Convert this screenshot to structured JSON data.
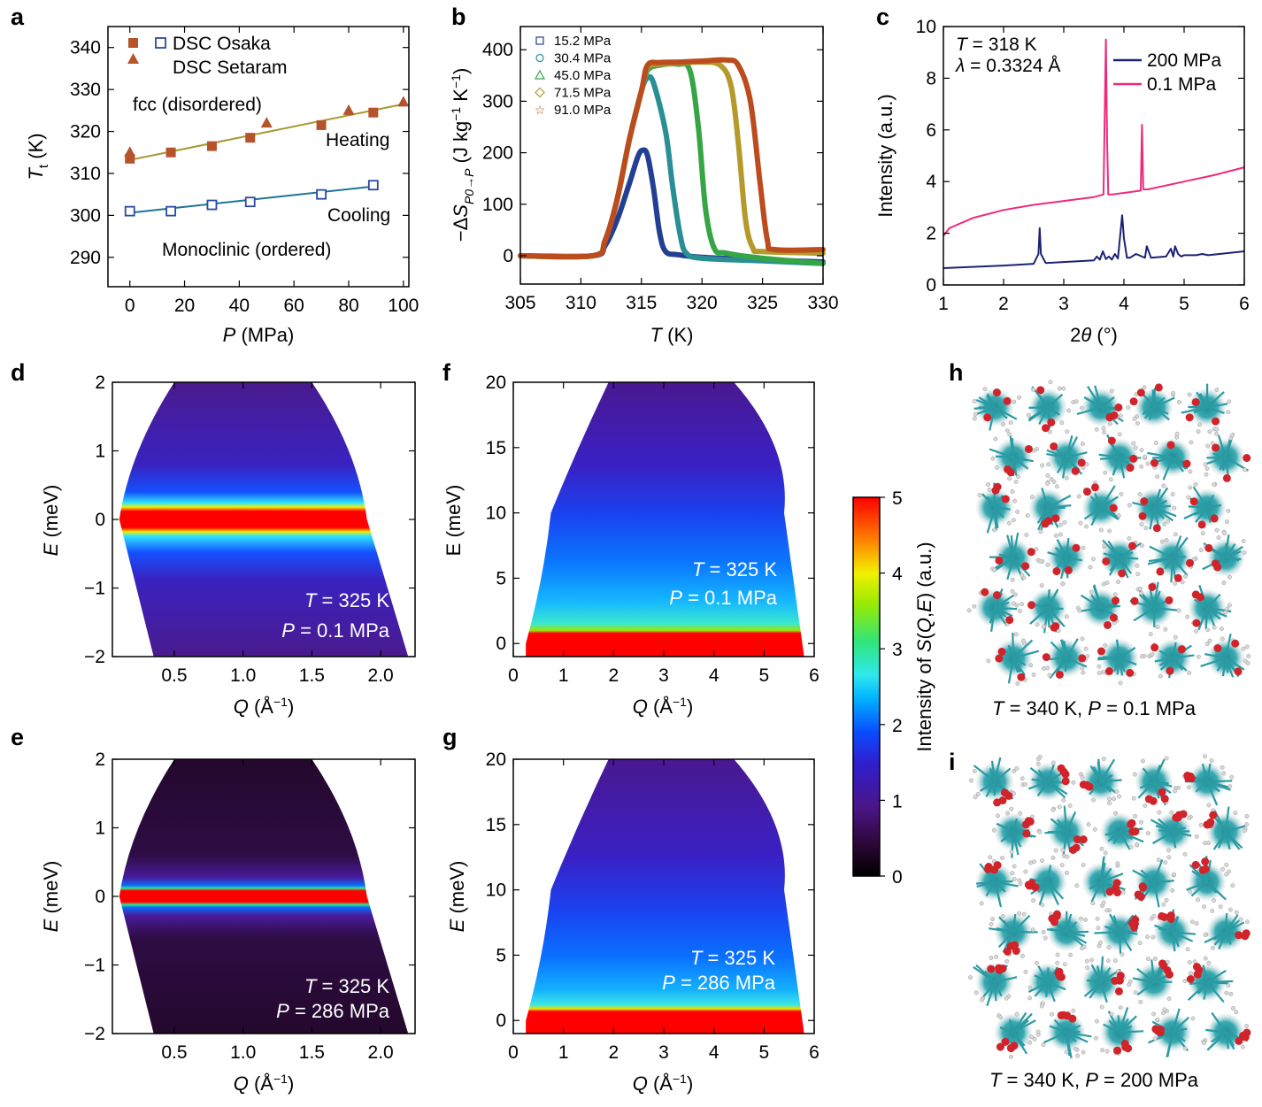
{
  "chart_data": [
    {
      "panel": "a",
      "type": "scatter",
      "xlabel": "P (MPa)",
      "ylabel": "Tt (K)",
      "xlim": [
        -8,
        102
      ],
      "ylim": [
        283,
        345
      ],
      "xticks": [
        0,
        20,
        40,
        60,
        80,
        100
      ],
      "yticks": [
        290,
        300,
        310,
        320,
        330,
        340
      ],
      "legend": [
        "DSC Osaka",
        "DSC Setaram"
      ],
      "annotations": [
        "fcc (disordered)",
        "Heating",
        "Cooling",
        "Monoclinic (ordered)"
      ],
      "series": [
        {
          "name": "Heating, DSC Osaka",
          "marker": "square-filled",
          "color": "#b5532a",
          "x": [
            0,
            15,
            30,
            44,
            70,
            89
          ],
          "y": [
            313.5,
            315,
            316.5,
            318.5,
            321.5,
            324.5
          ]
        },
        {
          "name": "Heating, DSC Setaram",
          "marker": "triangle",
          "color": "#b5532a",
          "x": [
            0,
            50,
            80,
            100
          ],
          "y": [
            315,
            322,
            325,
            327
          ]
        },
        {
          "name": "Cooling, DSC Osaka",
          "marker": "square-open",
          "color": "#2a4aa0",
          "x": [
            0,
            15,
            30,
            44,
            70,
            89
          ],
          "y": [
            301,
            301,
            302.5,
            303.2,
            305,
            307.2
          ]
        }
      ],
      "fits": [
        {
          "name": "Heating fit",
          "color": "#a8962e",
          "x": [
            0,
            100
          ],
          "y": [
            313.2,
            326.5
          ]
        },
        {
          "name": "Cooling fit",
          "color": "#1d7595",
          "x": [
            0,
            89
          ],
          "y": [
            300.6,
            306.9
          ]
        }
      ]
    },
    {
      "panel": "b",
      "type": "line",
      "xlabel": "T (K)",
      "ylabel": "−ΔS P0→P (J kg−1 K−1)",
      "xlim": [
        305,
        330
      ],
      "ylim": [
        -55,
        445
      ],
      "xticks": [
        305,
        310,
        315,
        320,
        325,
        330
      ],
      "yticks": [
        0,
        100,
        200,
        300,
        400
      ],
      "series": [
        {
          "name": "15.2 MPa",
          "color": "#233f93",
          "x": [
            305,
            311,
            312,
            313,
            314,
            314.7,
            315.1,
            315.5,
            316,
            316.5,
            317,
            318,
            320,
            325,
            330
          ],
          "y": [
            0,
            0,
            20,
            70,
            140,
            192,
            205,
            195,
            130,
            45,
            8,
            2,
            -3,
            -8,
            -12
          ]
        },
        {
          "name": "30.4 MPa",
          "color": "#2a8f95",
          "x": [
            305,
            311,
            312,
            313,
            314,
            315,
            315.5,
            316,
            317,
            317.6,
            318.2,
            318.7,
            320,
            325,
            330
          ],
          "y": [
            0,
            0,
            30,
            110,
            225,
            320,
            345,
            335,
            240,
            130,
            40,
            5,
            -5,
            -10,
            -15
          ]
        },
        {
          "name": "45.0 MPa",
          "color": "#35a545",
          "x": [
            305,
            311,
            312,
            313,
            314,
            315,
            315.5,
            316.5,
            318,
            319,
            319.7,
            320.3,
            321,
            322,
            325,
            330
          ],
          "y": [
            0,
            0,
            30,
            110,
            225,
            320,
            360,
            370,
            372,
            360,
            250,
            90,
            15,
            5,
            -5,
            -15
          ]
        },
        {
          "name": "71.5 MPa",
          "color": "#b39a2a",
          "x": [
            305,
            311,
            312,
            313,
            314,
            315,
            315.5,
            316.5,
            318,
            320,
            321.5,
            322.4,
            323,
            323.6,
            324.2,
            325,
            330
          ],
          "y": [
            0,
            0,
            30,
            110,
            225,
            320,
            365,
            372,
            374,
            376,
            370,
            330,
            220,
            70,
            15,
            8,
            5
          ]
        },
        {
          "name": "91.0 MPa",
          "color": "#bc4b1e",
          "x": [
            305,
            311,
            312,
            313,
            314,
            315,
            315.5,
            316.5,
            318,
            320,
            322,
            323,
            324,
            324.8,
            325.4,
            326,
            330
          ],
          "y": [
            0,
            0,
            30,
            110,
            225,
            320,
            370,
            375,
            376,
            378,
            380,
            370,
            300,
            140,
            30,
            12,
            12
          ]
        }
      ]
    },
    {
      "panel": "c",
      "type": "line",
      "xlabel": "2θ (°)",
      "ylabel": "Intensity (a.u.)",
      "xlim": [
        1,
        6
      ],
      "ylim": [
        0,
        10
      ],
      "xticks": [
        1,
        2,
        3,
        4,
        5,
        6
      ],
      "yticks": [
        0,
        2,
        4,
        6,
        8,
        10
      ],
      "annotations": [
        "T = 318 K",
        "λ = 0.3324 Å"
      ],
      "series": [
        {
          "name": "200 MPa",
          "color": "#1c2272",
          "x": [
            1.0,
            2.0,
            2.5,
            2.58,
            2.6,
            2.62,
            2.7,
            3.5,
            3.55,
            3.6,
            3.65,
            3.7,
            3.75,
            3.8,
            3.85,
            3.9,
            3.97,
            4.0,
            4.05,
            4.1,
            4.2,
            4.35,
            4.38,
            4.45,
            4.7,
            4.78,
            4.82,
            4.85,
            4.9,
            4.95,
            5.0,
            5.2,
            5.3,
            5.4,
            6.0
          ],
          "y": [
            0.65,
            0.75,
            0.82,
            1.2,
            2.2,
            1.2,
            0.85,
            0.95,
            1.1,
            0.98,
            1.3,
            1.0,
            1.1,
            0.98,
            1.2,
            1.02,
            2.7,
            1.8,
            1.05,
            1.05,
            1.2,
            1.05,
            1.5,
            1.05,
            1.1,
            1.4,
            1.1,
            1.5,
            1.2,
            1.1,
            1.15,
            1.15,
            1.2,
            1.15,
            1.3
          ]
        },
        {
          "name": "0.1 MPa",
          "color": "#ee2a7b",
          "x": [
            1.0,
            1.1,
            1.5,
            2.0,
            2.5,
            3.0,
            3.5,
            3.66,
            3.7,
            3.72,
            3.74,
            3.8,
            4.28,
            4.3,
            4.32,
            4.4,
            5.0,
            5.5,
            6.0
          ],
          "y": [
            1.9,
            2.2,
            2.6,
            2.9,
            3.1,
            3.25,
            3.4,
            3.5,
            9.5,
            5.5,
            3.5,
            3.5,
            3.65,
            6.2,
            3.7,
            3.7,
            4.0,
            4.25,
            4.55
          ]
        }
      ]
    },
    {
      "panel": "d",
      "type": "heatmap",
      "xlabel": "Q (Å−1)",
      "ylabel": "E (meV)",
      "xlim": [
        0.05,
        2.25
      ],
      "ylim": [
        -2,
        2
      ],
      "xticks": [
        0.5,
        1.0,
        1.5,
        2.0
      ],
      "yticks": [
        -2,
        -1,
        0,
        1,
        2
      ],
      "annotations": [
        "T = 325 K",
        "P = 0.1 MPa"
      ],
      "coverage_at_E": [
        {
          "E": 2,
          "Q": [
            0.5,
            1.5
          ]
        },
        {
          "E": 0,
          "Q": [
            0.1,
            1.9
          ]
        },
        {
          "E": -2,
          "Q": [
            0.35,
            2.2
          ]
        }
      ],
      "intensity_profile": {
        "E": [
          0,
          0.25,
          0.45,
          1,
          2
        ],
        "value": [
          5,
          2.6,
          1.7,
          1.0,
          0.8
        ]
      }
    },
    {
      "panel": "e",
      "type": "heatmap",
      "xlabel": "Q (Å−1)",
      "ylabel": "E (meV)",
      "xlim": [
        0.05,
        2.25
      ],
      "ylim": [
        -2,
        2
      ],
      "xticks": [
        0.5,
        1.0,
        1.5,
        2.0
      ],
      "yticks": [
        -2,
        -1,
        0,
        1,
        2
      ],
      "annotations": [
        "T = 325 K",
        "P = 286 MPa"
      ],
      "coverage_at_E": [
        {
          "E": 2,
          "Q": [
            0.5,
            1.5
          ]
        },
        {
          "E": 0,
          "Q": [
            0.1,
            1.9
          ]
        },
        {
          "E": -2,
          "Q": [
            0.35,
            2.2
          ]
        }
      ],
      "intensity_profile": {
        "E": [
          0,
          0.12,
          0.2,
          0.5,
          2
        ],
        "value": [
          5,
          2.4,
          1.3,
          0.4,
          0.3
        ]
      }
    },
    {
      "panel": "f",
      "type": "heatmap",
      "xlabel": "Q (Å−1)",
      "ylabel": "E (meV)",
      "xlim": [
        0,
        6
      ],
      "ylim": [
        -1,
        20
      ],
      "xticks": [
        0,
        1,
        2,
        3,
        4,
        5,
        6
      ],
      "yticks": [
        0,
        5,
        10,
        15,
        20
      ],
      "annotations": [
        "T = 325 K",
        "P = 0.1 MPa"
      ],
      "coverage_at_E": [
        {
          "E": 20,
          "Q": [
            1.9,
            4.4
          ]
        },
        {
          "E": 10,
          "Q": [
            0.75,
            5.4
          ]
        },
        {
          "E": 0,
          "Q": [
            0.25,
            5.8
          ]
        }
      ],
      "intensity_profile": {
        "E": [
          0,
          1.2,
          2,
          5,
          10,
          20
        ],
        "value": [
          5,
          2.8,
          2.3,
          1.5,
          1.2,
          0.9
        ]
      }
    },
    {
      "panel": "g",
      "type": "heatmap",
      "xlabel": "Q (Å−1)",
      "ylabel": "E (meV)",
      "xlim": [
        0,
        6
      ],
      "ylim": [
        -1,
        20
      ],
      "xticks": [
        0,
        1,
        2,
        3,
        4,
        5,
        6
      ],
      "yticks": [
        0,
        5,
        10,
        15,
        20
      ],
      "annotations": [
        "T = 325 K",
        "P = 286 MPa"
      ],
      "coverage_at_E": [
        {
          "E": 20,
          "Q": [
            1.9,
            4.4
          ]
        },
        {
          "E": 10,
          "Q": [
            0.75,
            5.4
          ]
        },
        {
          "E": 0,
          "Q": [
            0.25,
            5.8
          ]
        }
      ],
      "intensity_profile": {
        "E": [
          0,
          1.2,
          2,
          5,
          10,
          20
        ],
        "value": [
          5,
          2.6,
          2.1,
          1.4,
          1.1,
          0.9
        ]
      }
    },
    {
      "panel": "colorbar",
      "type": "heatmap",
      "label": "Intensity of S(Q,E) (a.u.)",
      "range": [
        0,
        5
      ],
      "ticks": [
        0,
        1,
        2,
        3,
        4,
        5
      ]
    }
  ],
  "panels": {
    "a": {
      "letter": "a",
      "legend": [
        "DSC Osaka",
        "DSC Setaram"
      ],
      "labels": [
        "fcc (disordered)",
        "Heating",
        "Cooling",
        "Monoclinic (ordered)"
      ],
      "xlabel_var": "P",
      "xlabel_unit": " (MPa)",
      "ylabel_var": "T",
      "ylabel_sub": "t",
      "ylabel_unit": " (K)"
    },
    "b": {
      "letter": "b",
      "xlabel_var": "T",
      "xlabel_unit": " (K)",
      "ylabel_pre": "−Δ",
      "ylabel_var": "S",
      "ylabel_sub": "P0→P",
      "ylabel_unit": " (J kg",
      "ylabel_exp": "−1",
      "ylabel_unit2": " K",
      "ylabel_exp2": "−1",
      "ylabel_close": ")"
    },
    "c": {
      "letter": "c",
      "T_var": "T",
      "T_val": " = 318 K",
      "lambda_var": "λ",
      "lambda_val": " = 0.3324 Å",
      "xlabel_num": "2",
      "xlabel_var": "θ",
      "xlabel_unit": " (°)",
      "ylabel": "Intensity (a.u.)"
    },
    "d": {
      "letter": "d",
      "T_val": " = 325 K",
      "P_val": " = 0.1 MPa"
    },
    "e": {
      "letter": "e",
      "T_val": " = 325 K",
      "P_val": " = 286 MPa"
    },
    "f": {
      "letter": "f",
      "T_val": " = 325 K",
      "P_val": " = 0.1 MPa"
    },
    "g": {
      "letter": "g",
      "T_val": " = 325 K",
      "P_val": " = 286 MPa"
    },
    "h": {
      "letter": "h",
      "T_val": " = 340 K, ",
      "P_val": " = 0.1 MPa"
    },
    "i": {
      "letter": "i",
      "T_val": " = 340 K, ",
      "P_val": " = 200 MPa"
    },
    "common": {
      "T": "T",
      "P": "P",
      "Q": "Q",
      "Q_unit": " (Å",
      "Q_exp": "−1",
      "Q_close": ")",
      "E": "E",
      "E_unit": " (meV)",
      "E_plain": "E (meV)"
    },
    "colorbar": {
      "label_pre": "Intensity of ",
      "label_S": "S",
      "label_paren": "(",
      "label_Q": "Q",
      "label_comma": ",",
      "label_E": "E",
      "label_post": ") (a.u.)"
    }
  },
  "colors": {
    "heating": "#b5532a",
    "cooling": "#2a4aa0",
    "heating_fit": "#a8962e",
    "cooling_fit": "#1d7595"
  }
}
